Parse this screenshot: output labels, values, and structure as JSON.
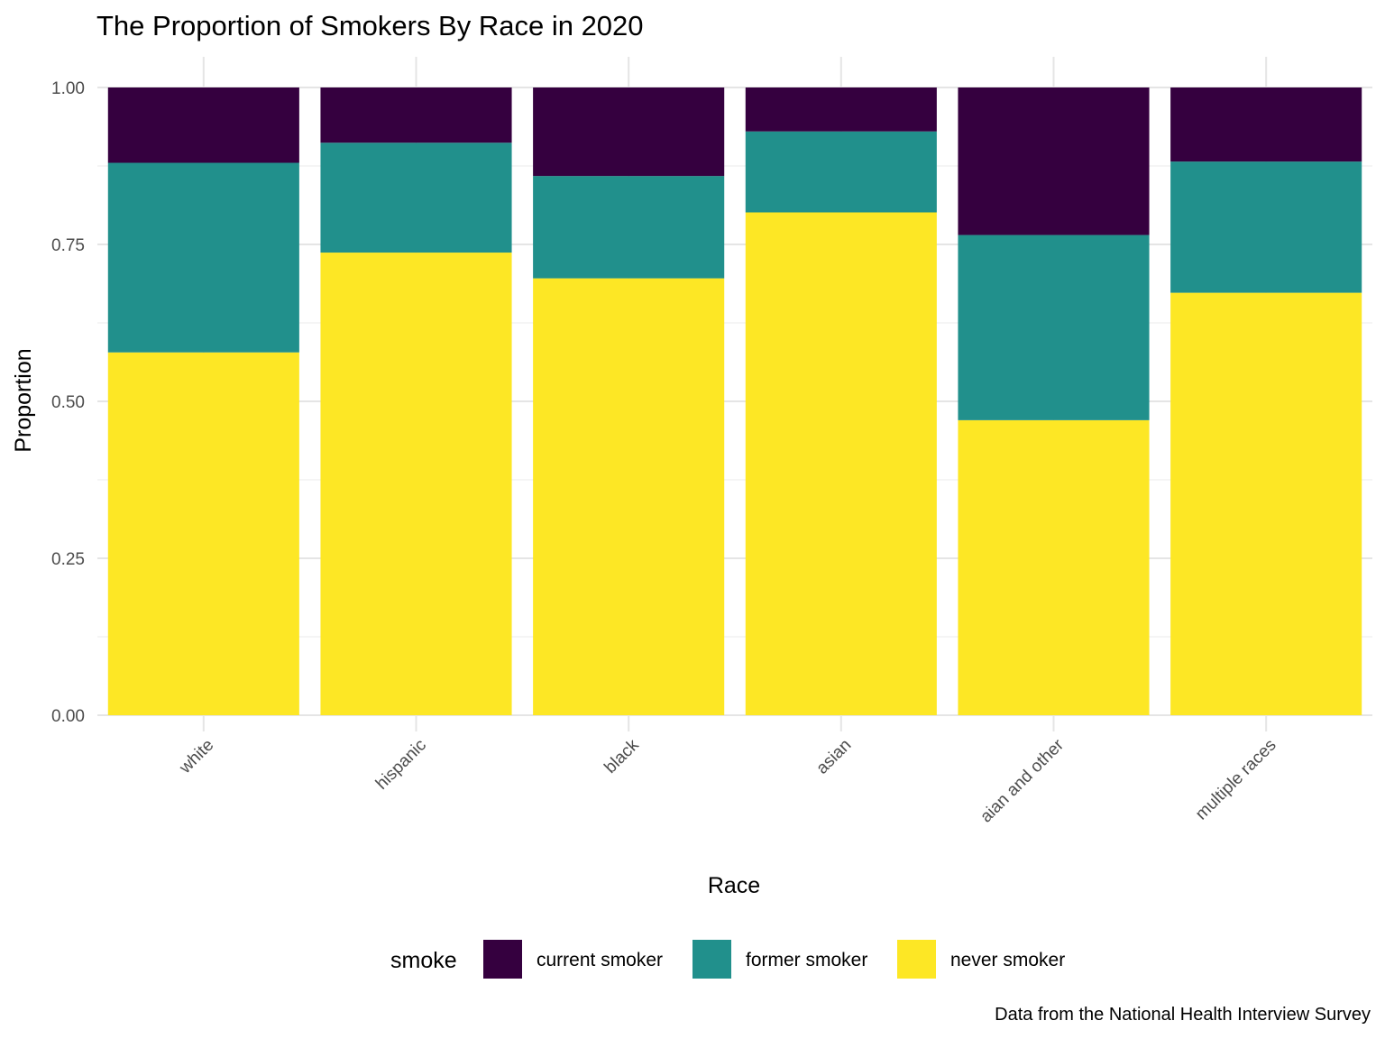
{
  "chart_data": {
    "type": "bar",
    "stacked": true,
    "title": "The Proportion of Smokers By Race in 2020",
    "xlabel": "Race",
    "ylabel": "Proportion",
    "caption": "Data from the National Health Interview Survey",
    "ylim": [
      0,
      1
    ],
    "yticks": [
      "0.00",
      "0.25",
      "0.50",
      "0.75",
      "1.00"
    ],
    "categories": [
      "white",
      "hispanic",
      "black",
      "asian",
      "aian and other",
      "multiple races"
    ],
    "legend_title": "smoke",
    "legend_position": "bottom",
    "grid": true,
    "series": [
      {
        "name": "never smoker",
        "color": "#FDE725",
        "values": [
          0.578,
          0.737,
          0.696,
          0.801,
          0.47,
          0.673
        ]
      },
      {
        "name": "former smoker",
        "color": "#21908C",
        "values": [
          0.302,
          0.175,
          0.163,
          0.129,
          0.295,
          0.209
        ]
      },
      {
        "name": "current smoker",
        "color": "#35003F",
        "values": [
          0.12,
          0.088,
          0.141,
          0.07,
          0.235,
          0.118
        ]
      }
    ],
    "legend_order": [
      "current smoker",
      "former smoker",
      "never smoker"
    ]
  }
}
